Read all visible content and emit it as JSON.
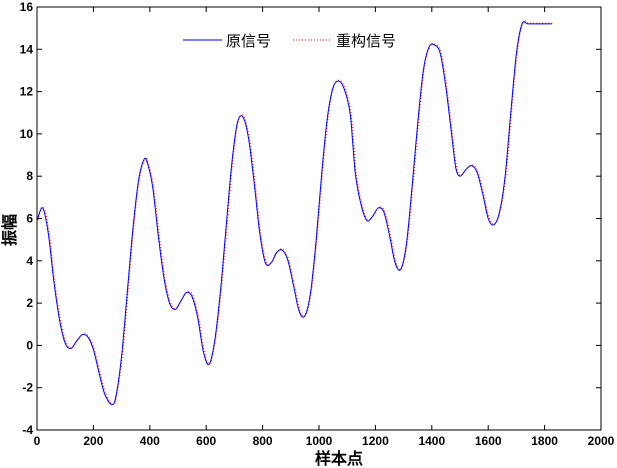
{
  "chart_data": {
    "type": "line",
    "title": "",
    "xlabel": "样本点",
    "ylabel": "振幅",
    "xlim": [
      0,
      2000
    ],
    "ylim": [
      -4,
      16
    ],
    "xticks": [
      0,
      200,
      400,
      600,
      800,
      1000,
      1200,
      1400,
      1600,
      1800,
      2000
    ],
    "yticks": [
      -4,
      -2,
      0,
      2,
      4,
      6,
      8,
      10,
      12,
      14,
      16
    ],
    "grid": false,
    "legend_position": "top-center",
    "series": [
      {
        "name": "原信号",
        "color": "#0000ff",
        "style": "solid",
        "x": [
          0,
          20,
          40,
          60,
          80,
          100,
          120,
          140,
          160,
          180,
          200,
          220,
          240,
          265,
          280,
          300,
          320,
          340,
          360,
          380,
          392,
          410,
          430,
          450,
          470,
          490,
          510,
          530,
          550,
          570,
          590,
          610,
          630,
          650,
          670,
          690,
          710,
          730,
          750,
          770,
          790,
          810,
          830,
          850,
          870,
          890,
          910,
          930,
          950,
          970,
          990,
          1010,
          1030,
          1050,
          1070,
          1090,
          1110,
          1120,
          1130,
          1150,
          1170,
          1190,
          1210,
          1230,
          1250,
          1270,
          1290,
          1310,
          1330,
          1350,
          1370,
          1390,
          1410,
          1430,
          1450,
          1470,
          1485,
          1500,
          1520,
          1540,
          1560,
          1580,
          1600,
          1620,
          1640,
          1660,
          1680,
          1700,
          1720,
          1740,
          1760,
          1780,
          1800,
          1825
        ],
        "y": [
          5.9,
          6.5,
          5.3,
          3.0,
          1.2,
          0.1,
          -0.15,
          0.2,
          0.5,
          0.4,
          -0.2,
          -1.3,
          -2.3,
          -2.8,
          -2.4,
          -0.5,
          2.5,
          5.5,
          7.8,
          8.8,
          8.6,
          7.5,
          5.2,
          3.2,
          2.0,
          1.7,
          2.1,
          2.5,
          2.3,
          1.3,
          -0.3,
          -0.9,
          0.2,
          2.5,
          5.5,
          8.5,
          10.5,
          10.8,
          9.8,
          7.7,
          5.3,
          3.9,
          3.9,
          4.4,
          4.5,
          4.0,
          2.8,
          1.6,
          1.4,
          2.5,
          5.0,
          8.2,
          10.8,
          12.2,
          12.5,
          12.1,
          11.0,
          9.5,
          8.0,
          6.6,
          5.9,
          6.1,
          6.5,
          6.3,
          5.2,
          3.9,
          3.6,
          4.8,
          7.5,
          10.5,
          13.0,
          14.1,
          14.2,
          13.8,
          12.2,
          10.0,
          8.4,
          8.0,
          8.3,
          8.5,
          8.2,
          7.2,
          6.0,
          5.7,
          6.3,
          8.0,
          11.0,
          13.8,
          15.2,
          15.2,
          15.2,
          15.2,
          15.2,
          15.2
        ],
        "note_x_extent": 1825
      },
      {
        "name": "重构信号",
        "color": "#ff0000",
        "style": "dotted",
        "tracks": "原信号"
      }
    ]
  }
}
